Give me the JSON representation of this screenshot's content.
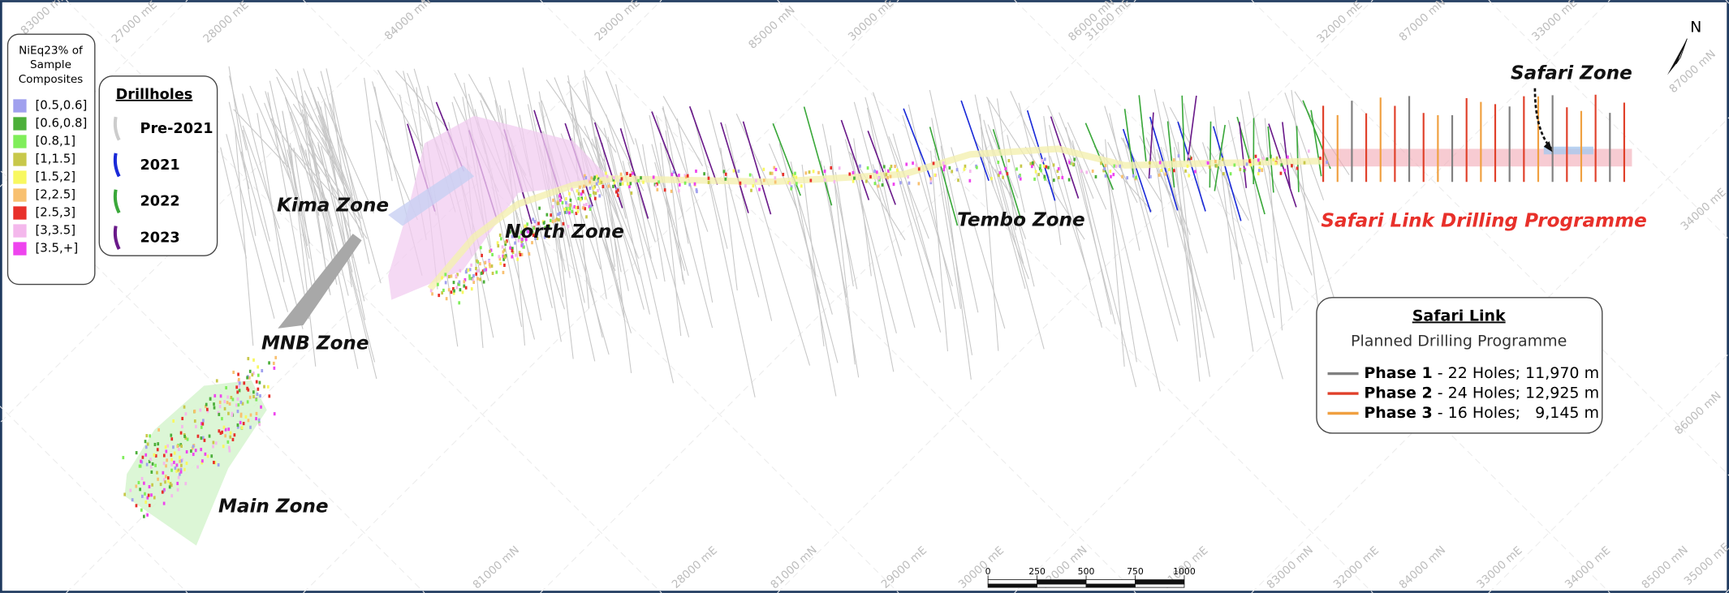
{
  "north_arrow": "N",
  "grade_legend": {
    "title": "NiEq23% of Sample Composites",
    "items": [
      {
        "label": "[0.5,0.6]",
        "color": "#a0a0ee"
      },
      {
        "label": "[0.6,0.8]",
        "color": "#4caf3a"
      },
      {
        "label": "[0.8,1]",
        "color": "#7fee5a"
      },
      {
        "label": "[1,1.5]",
        "color": "#c8c84a"
      },
      {
        "label": "[1.5,2]",
        "color": "#f8f860"
      },
      {
        "label": "[2,2.5]",
        "color": "#f8c070"
      },
      {
        "label": "[2.5,3]",
        "color": "#e8302a"
      },
      {
        "label": "[3,3.5]",
        "color": "#f4b8ec"
      },
      {
        "label": "[3.5,+]",
        "color": "#ee44ee"
      }
    ]
  },
  "drillhole_legend": {
    "title": "Drillholes",
    "items": [
      {
        "label": "Pre-2021",
        "color": "#cccccc"
      },
      {
        "label": "2021",
        "color": "#1a2ad8"
      },
      {
        "label": "2022",
        "color": "#3aa83a"
      },
      {
        "label": "2023",
        "color": "#6a1a8a"
      }
    ]
  },
  "zones": [
    "Kima Zone",
    "North Zone",
    "MNB Zone",
    "Main Zone",
    "Tembo Zone",
    "Safari Zone",
    "Safari Link Drilling Programme"
  ],
  "grid_labels": [
    "83000 mN",
    "27000 mE",
    "28000 mE",
    "84000 mN",
    "29000 mE",
    "85000 mN",
    "30000 mE",
    "86000 mN",
    "31000 mE",
    "32000 mE",
    "87000 mN",
    "33000 mE",
    "87000 mN",
    "34000 mE",
    "86000 mN",
    "35000 mE",
    "85000 mN",
    "34000 mE",
    "33000 mE",
    "84000 mN",
    "32000 mE",
    "83000 mN",
    "31000 mE",
    "82000 mN",
    "30000 mE",
    "29000 mE",
    "81000 mN",
    "28000 mE",
    "81000 mN"
  ],
  "scale_bar": {
    "ticks": [
      0,
      250,
      500,
      750,
      1000
    ]
  },
  "safari_link_box": {
    "title": "Safari Link",
    "subtitle": "Planned Drilling Programme",
    "phases": [
      {
        "name": "Phase 1",
        "detail": " - 22 Holes; 11,970 m",
        "color": "#808080"
      },
      {
        "name": "Phase 2",
        "detail": " - 24 Holes; 12,925 m",
        "color": "#e0402a"
      },
      {
        "name": "Phase 3",
        "detail": " - 16 Holes;   9,145 m",
        "color": "#f0a040"
      }
    ]
  }
}
